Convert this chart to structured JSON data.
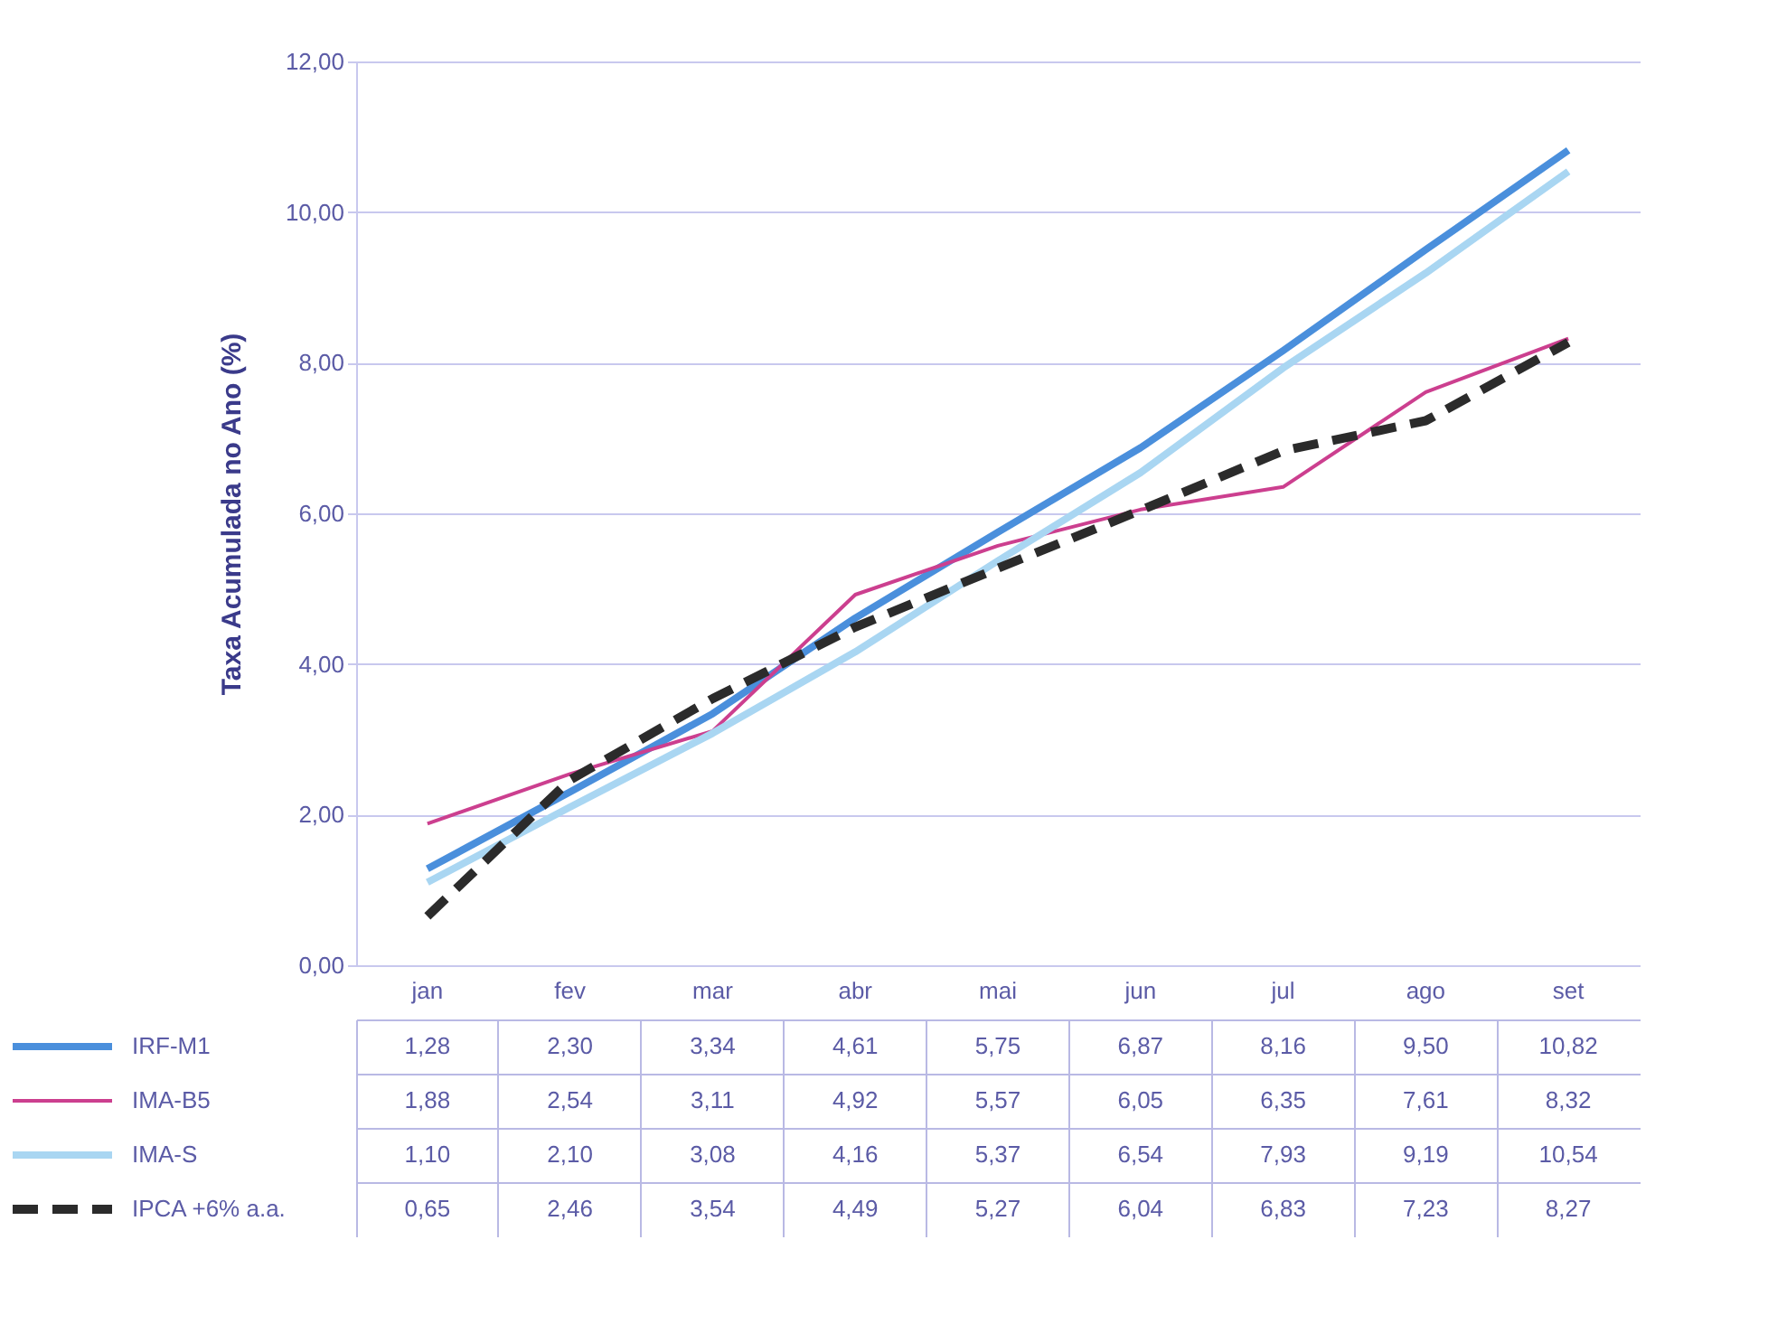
{
  "chart_data": {
    "type": "line",
    "ylabel": "Taxa Acumulada no Ano (%)",
    "categories": [
      "jan",
      "fev",
      "mar",
      "abr",
      "mai",
      "jun",
      "jul",
      "ago",
      "set"
    ],
    "ylim": [
      0,
      12
    ],
    "yticks": [
      {
        "value": 0,
        "label": "0,00"
      },
      {
        "value": 2,
        "label": "2,00"
      },
      {
        "value": 4,
        "label": "4,00"
      },
      {
        "value": 6,
        "label": "6,00"
      },
      {
        "value": 8,
        "label": "8,00"
      },
      {
        "value": 10,
        "label": "10,00"
      },
      {
        "value": 12,
        "label": "12,00"
      }
    ],
    "grid": "y",
    "legend": "bottom left",
    "series": [
      {
        "name": "IRF-M1",
        "color": "#4a8fdc",
        "values": [
          1.28,
          2.3,
          3.34,
          4.61,
          5.75,
          6.87,
          8.16,
          9.5,
          10.82
        ],
        "value_labels": [
          "1,28",
          "2,30",
          "3,34",
          "4,61",
          "5,75",
          "6,87",
          "8,16",
          "9,50",
          "10,82"
        ]
      },
      {
        "name": "IMA-B5",
        "color": "#cc3f8f",
        "values": [
          1.88,
          2.54,
          3.11,
          4.92,
          5.57,
          6.05,
          6.35,
          7.61,
          8.32
        ],
        "value_labels": [
          "1,88",
          "2,54",
          "3,11",
          "4,92",
          "5,57",
          "6,05",
          "6,35",
          "7,61",
          "8,32"
        ]
      },
      {
        "name": "IMA-S",
        "color": "#a9d6f2",
        "values": [
          1.1,
          2.1,
          3.08,
          4.16,
          5.37,
          6.54,
          7.93,
          9.19,
          10.54
        ],
        "value_labels": [
          "1,10",
          "2,10",
          "3,08",
          "4,16",
          "5,37",
          "6,54",
          "7,93",
          "9,19",
          "10,54"
        ]
      },
      {
        "name": "IPCA +6% a.a.",
        "color": "#2b2b2b",
        "line_style": "dashed",
        "values": [
          0.65,
          2.46,
          3.54,
          4.49,
          5.27,
          6.04,
          6.83,
          7.23,
          8.27
        ],
        "value_labels": [
          "0,65",
          "2,46",
          "3,54",
          "4,49",
          "5,27",
          "6,04",
          "6,83",
          "7,23",
          "8,27"
        ]
      }
    ]
  }
}
